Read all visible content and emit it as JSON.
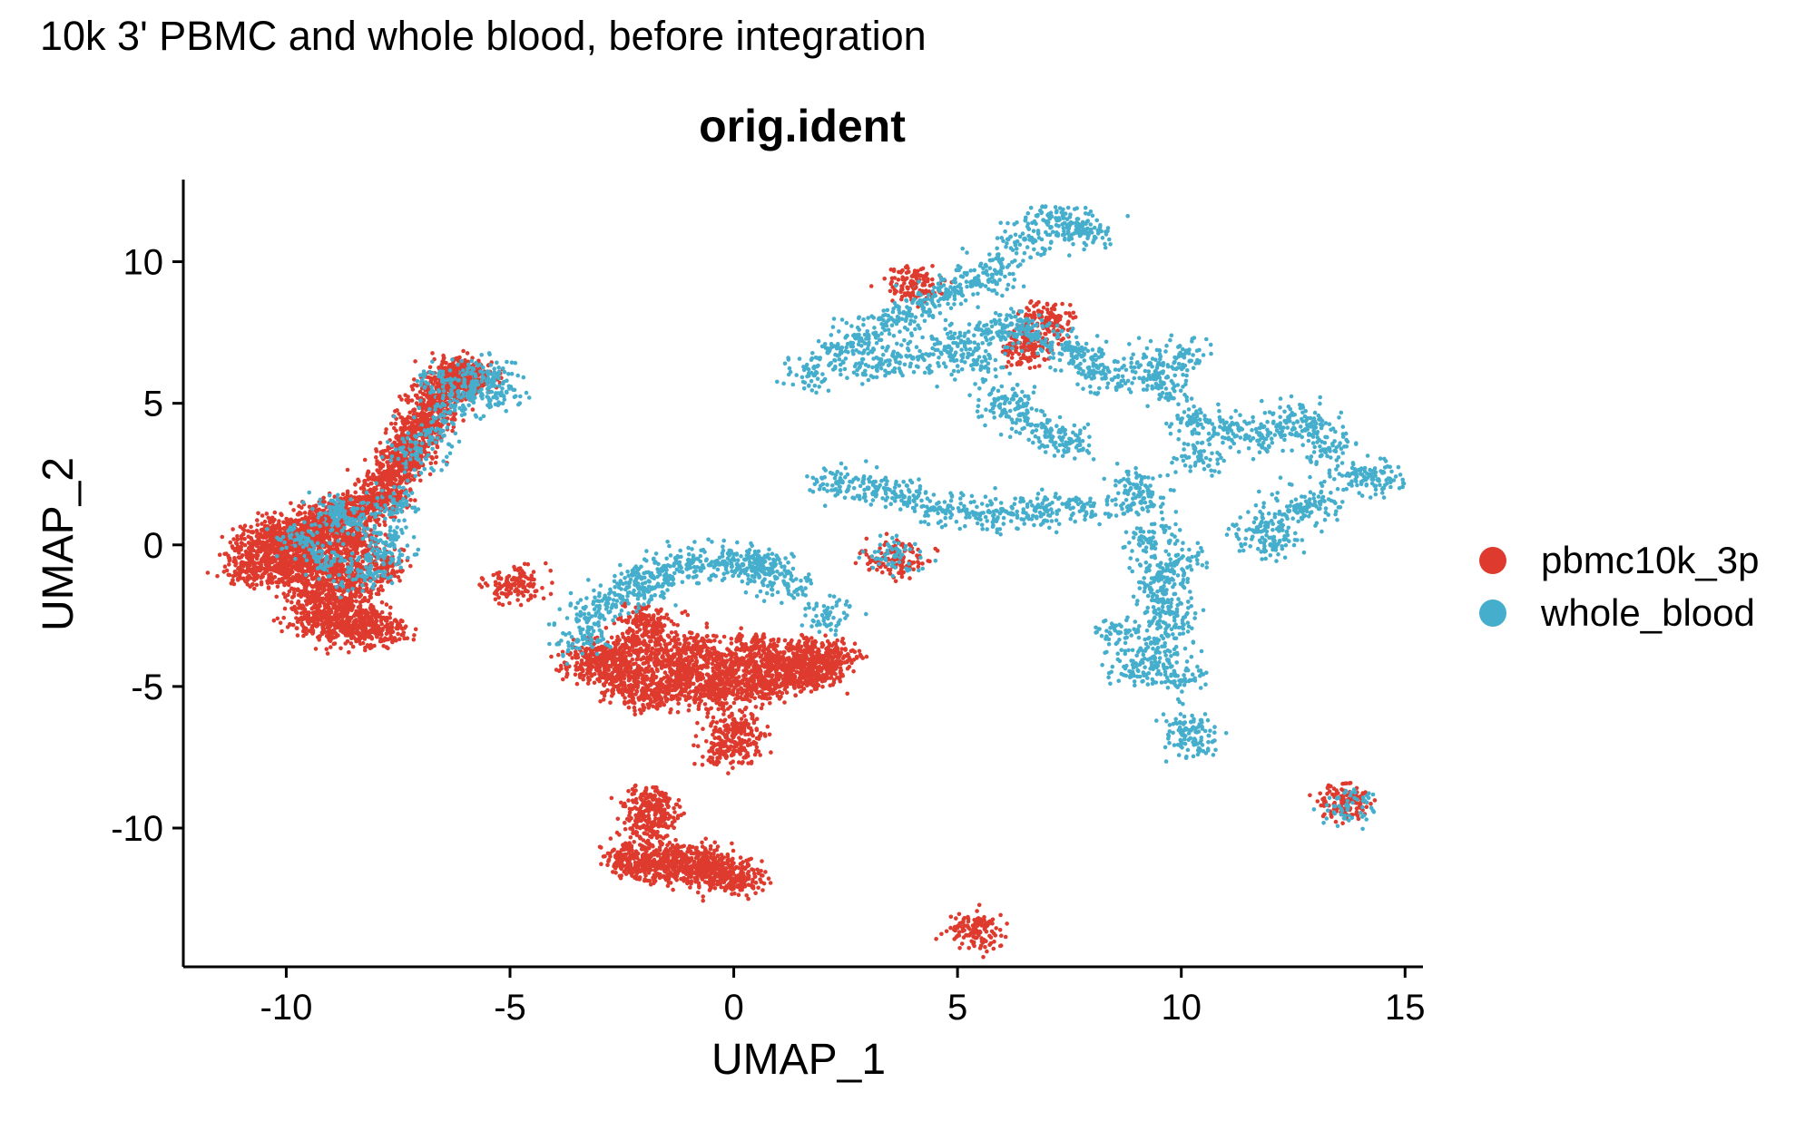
{
  "title": "10k 3' PBMC and whole blood, before integration",
  "chart_data": {
    "type": "scatter",
    "title": "orig.ident",
    "xlabel": "UMAP_1",
    "ylabel": "UMAP_2",
    "xlim": [
      -12.3,
      15.4
    ],
    "ylim": [
      -14.9,
      12.9
    ],
    "xticks": [
      -10,
      -5,
      0,
      5,
      10,
      15
    ],
    "xtick_labels": [
      "-10",
      "-5",
      "0",
      "5",
      "10",
      "15"
    ],
    "yticks": [
      -10,
      -5,
      0,
      5,
      10
    ],
    "ytick_labels": [
      "-10",
      "-5",
      "0",
      "5",
      "10"
    ],
    "grid": false,
    "legend_position": "right",
    "series": [
      {
        "name": "pbmc10k_3p",
        "color": "#DE3A2E",
        "points": [
          [
            -10.6,
            -0.2
          ],
          [
            -10.3,
            0.4
          ],
          [
            -10.1,
            -0.6
          ],
          [
            -9.9,
            0.1
          ],
          [
            -9.8,
            -1.2
          ],
          [
            -9.6,
            0.6
          ],
          [
            -9.5,
            -0.4
          ],
          [
            -9.3,
            -1.8
          ],
          [
            -9.2,
            0.9
          ],
          [
            -9.0,
            -0.9
          ],
          [
            -8.9,
            0.3
          ],
          [
            -8.7,
            -2.3
          ],
          [
            -8.6,
            1.1
          ],
          [
            -8.5,
            -1.4
          ],
          [
            -8.4,
            0.0
          ],
          [
            -8.2,
            -2.8
          ],
          [
            -8.1,
            1.4
          ],
          [
            -8.0,
            -0.7
          ],
          [
            -7.9,
            -3.0
          ],
          [
            -7.8,
            1.8
          ],
          [
            -7.6,
            2.4
          ],
          [
            -7.4,
            3.0
          ],
          [
            -7.2,
            3.5
          ],
          [
            -7.0,
            4.1
          ],
          [
            -6.8,
            4.6
          ],
          [
            -6.6,
            5.2
          ],
          [
            -6.4,
            5.6
          ],
          [
            -6.2,
            6.1
          ],
          [
            -5.9,
            5.9
          ],
          [
            -9.4,
            -2.6
          ],
          [
            -8.8,
            -2.9
          ],
          [
            -10.8,
            -0.9
          ],
          [
            -2.9,
            -3.8
          ],
          [
            -2.6,
            -4.4
          ],
          [
            -2.3,
            -5.0
          ],
          [
            -2.0,
            -3.5
          ],
          [
            -1.7,
            -5.3
          ],
          [
            -1.4,
            -4.1
          ],
          [
            -1.1,
            -4.7
          ],
          [
            -0.8,
            -3.6
          ],
          [
            -0.5,
            -5.2
          ],
          [
            -0.2,
            -4.3
          ],
          [
            0.1,
            -4.9
          ],
          [
            0.4,
            -3.7
          ],
          [
            0.7,
            -5.0
          ],
          [
            1.0,
            -4.2
          ],
          [
            1.3,
            -4.6
          ],
          [
            1.6,
            -3.9
          ],
          [
            1.9,
            -4.4
          ],
          [
            2.2,
            -4.0
          ],
          [
            -1.9,
            -2.7
          ],
          [
            0.0,
            -6.5
          ],
          [
            -0.1,
            -7.2
          ],
          [
            -3.3,
            -4.2
          ],
          [
            -2.3,
            -11.0
          ],
          [
            -1.9,
            -11.3
          ],
          [
            -1.5,
            -11.1
          ],
          [
            -1.1,
            -11.4
          ],
          [
            -0.7,
            -11.2
          ],
          [
            -0.3,
            -11.6
          ],
          [
            0.1,
            -11.7
          ],
          [
            -1.9,
            -9.1
          ],
          [
            -1.8,
            -9.9
          ],
          [
            5.4,
            -13.6
          ],
          [
            3.6,
            -0.5
          ],
          [
            13.6,
            -9.1
          ],
          [
            -4.9,
            -1.4
          ],
          [
            4.0,
            9.2
          ],
          [
            6.6,
            7.0
          ],
          [
            7.0,
            8.0
          ]
        ]
      },
      {
        "name": "whole_blood",
        "color": "#45AECC",
        "points": [
          [
            -9.7,
            0.2
          ],
          [
            -9.1,
            -0.5
          ],
          [
            -8.6,
            0.8
          ],
          [
            -8.3,
            -1.1
          ],
          [
            -7.9,
            0.4
          ],
          [
            -7.6,
            1.5
          ],
          [
            -8.9,
            1.2
          ],
          [
            -7.8,
            -0.3
          ],
          [
            -6.8,
            4.0
          ],
          [
            -6.3,
            4.9
          ],
          [
            -5.8,
            5.5
          ],
          [
            -5.5,
            6.1
          ],
          [
            -5.2,
            5.3
          ],
          [
            -6.5,
            5.8
          ],
          [
            -7.1,
            3.2
          ],
          [
            -3.3,
            -2.6
          ],
          [
            -2.8,
            -1.9
          ],
          [
            -2.2,
            -1.3
          ],
          [
            -1.6,
            -0.9
          ],
          [
            -1.0,
            -0.7
          ],
          [
            -0.4,
            -0.6
          ],
          [
            0.2,
            -0.7
          ],
          [
            0.8,
            -0.9
          ],
          [
            1.2,
            -1.4
          ],
          [
            -2.0,
            -1.6
          ],
          [
            0.5,
            -0.6
          ],
          [
            -3.5,
            -3.4
          ],
          [
            2.1,
            -2.5
          ],
          [
            1.8,
            6.0
          ],
          [
            2.4,
            6.8
          ],
          [
            3.0,
            7.4
          ],
          [
            3.6,
            7.9
          ],
          [
            4.2,
            8.5
          ],
          [
            4.8,
            8.9
          ],
          [
            5.4,
            9.4
          ],
          [
            6.0,
            9.8
          ],
          [
            6.5,
            10.8
          ],
          [
            7.0,
            11.4
          ],
          [
            7.5,
            11.3
          ],
          [
            7.9,
            11.0
          ],
          [
            3.2,
            6.3
          ],
          [
            4.0,
            6.6
          ],
          [
            4.8,
            7.0
          ],
          [
            5.6,
            7.5
          ],
          [
            6.2,
            7.8
          ],
          [
            6.8,
            7.4
          ],
          [
            7.5,
            7.0
          ],
          [
            8.0,
            6.6
          ],
          [
            8.3,
            5.9
          ],
          [
            6.0,
            5.2
          ],
          [
            6.4,
            4.6
          ],
          [
            7.0,
            4.0
          ],
          [
            7.5,
            3.6
          ],
          [
            5.4,
            6.4
          ],
          [
            2.3,
            2.2
          ],
          [
            3.0,
            2.0
          ],
          [
            3.8,
            1.7
          ],
          [
            4.6,
            1.3
          ],
          [
            5.4,
            1.1
          ],
          [
            6.2,
            1.1
          ],
          [
            7.0,
            1.2
          ],
          [
            7.8,
            1.3
          ],
          [
            3.6,
            -0.4
          ],
          [
            9.3,
            6.4
          ],
          [
            10.0,
            6.7
          ],
          [
            9.6,
            5.7
          ],
          [
            10.2,
            4.4
          ],
          [
            11.0,
            4.1
          ],
          [
            11.8,
            3.8
          ],
          [
            12.4,
            4.5
          ],
          [
            12.9,
            4.2
          ],
          [
            13.3,
            3.4
          ],
          [
            13.9,
            2.5
          ],
          [
            14.4,
            2.3
          ],
          [
            13.1,
            1.5
          ],
          [
            12.4,
            1.2
          ],
          [
            11.7,
            0.6
          ],
          [
            12.0,
            0.0
          ],
          [
            10.4,
            3.0
          ],
          [
            9.0,
            2.1
          ],
          [
            9.1,
            1.5
          ],
          [
            9.3,
            0.2
          ],
          [
            9.5,
            -1.0
          ],
          [
            9.6,
            -1.7
          ],
          [
            9.8,
            -2.4
          ],
          [
            9.7,
            -3.2
          ],
          [
            9.4,
            -4.0
          ],
          [
            8.9,
            -4.5
          ],
          [
            8.6,
            -3.1
          ],
          [
            10.0,
            -4.8
          ],
          [
            10.1,
            -6.5
          ],
          [
            10.3,
            -6.9
          ],
          [
            13.7,
            -9.2
          ],
          [
            9.9,
            -0.6
          ]
        ]
      }
    ]
  }
}
